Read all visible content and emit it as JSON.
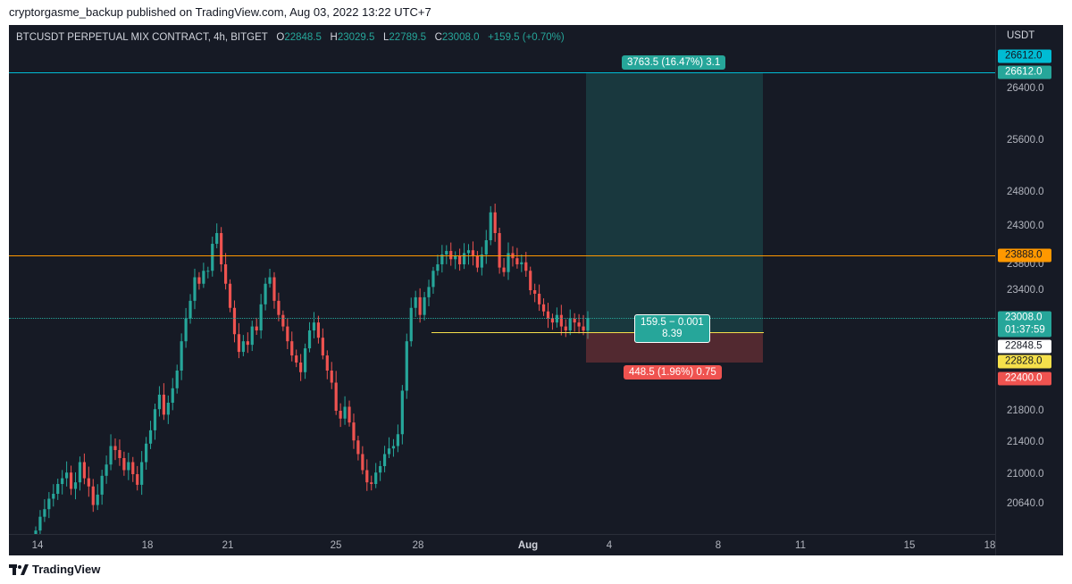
{
  "header": {
    "publish_line": "cryptorgasme_backup published on TradingView.com, Aug 03, 2022 13:22 UTC+7"
  },
  "legend": {
    "symbol": "BTCUSDT PERPETUAL MIX CONTRACT, 4h, BITGET",
    "o_label": "O",
    "o_value": "22848.5",
    "h_label": "H",
    "h_value": "23029.5",
    "l_label": "L",
    "l_value": "22789.5",
    "c_label": "C",
    "c_value": "23008.0",
    "change": "+159.5 (+0.70%)"
  },
  "price_axis": {
    "currency": "USDT",
    "ticks": [
      "26400.0",
      "25600.0",
      "24800.0",
      "24300.0",
      "23800.0",
      "23400.0",
      "21800.0",
      "21400.0",
      "21000.0",
      "20640.0"
    ],
    "tags": {
      "target_top": "26612.0",
      "target": "26612.0",
      "resistance": "23888.0",
      "last": "23008.0",
      "countdown": "01:37:59",
      "open": "22848.5",
      "entry": "22828.0",
      "stop": "22400.0"
    }
  },
  "time_axis": {
    "ticks": [
      "14",
      "18",
      "21",
      "25",
      "28",
      "Aug",
      "4",
      "8",
      "11",
      "15",
      "18"
    ]
  },
  "position": {
    "target_label": "3763.5 (16.47%) 3.1",
    "center_line1": "159.5 − 0.001",
    "center_line2": "8.39",
    "stop_label": "448.5 (1.96%) 0.75"
  },
  "colors": {
    "background": "#161a25",
    "up": "#26a69a",
    "down": "#ef5350",
    "target_line": "#00bcd4",
    "resistance_line": "#ff9800",
    "entry_line": "#f5e04b",
    "profit_zone": "#1e4c48",
    "loss_zone": "#4f2328"
  },
  "footer": {
    "brand": "TradingView"
  },
  "chart_data": {
    "type": "candlestick",
    "timeframe": "4h",
    "ylim": [
      20400,
      26800
    ],
    "levels": {
      "target": 26612.0,
      "resistance": 23888.0,
      "entry": 22828.0,
      "stop": 22400.0,
      "last": 23008.0,
      "open": 22848.5
    },
    "close_series": [
      20250,
      20450,
      20560,
      20700,
      20760,
      20880,
      20950,
      21020,
      20820,
      20900,
      21150,
      20950,
      20850,
      20620,
      20750,
      20980,
      21120,
      21350,
      21300,
      21200,
      21050,
      21150,
      21000,
      20870,
      21150,
      21380,
      21550,
      21820,
      22000,
      21750,
      21900,
      22080,
      22300,
      22700,
      23000,
      23250,
      23600,
      23500,
      23700,
      23700,
      24050,
      24200,
      23800,
      23500,
      23150,
      22800,
      22550,
      22700,
      22650,
      22900,
      22850,
      23200,
      23500,
      23600,
      23250,
      23050,
      22900,
      22700,
      22500,
      22400,
      22280,
      22600,
      22850,
      22950,
      22750,
      22500,
      22300,
      22150,
      21800,
      21700,
      21850,
      21650,
      21420,
      21250,
      21050,
      20900,
      20880,
      21020,
      21100,
      21250,
      21320,
      21350,
      21500,
      22050,
      22700,
      23150,
      23300,
      23050,
      23300,
      23450,
      23700,
      23800,
      23900,
      23950,
      23850,
      23880,
      23800,
      23920,
      23960,
      23880,
      23750,
      23900,
      24100,
      24500,
      24200,
      23750,
      23680,
      23920,
      23860,
      23800,
      23820,
      23700,
      23400,
      23350,
      23200,
      23100,
      23000,
      22950,
      23050,
      22900,
      22850,
      23000,
      22950,
      22900,
      22848,
      23008
    ]
  }
}
